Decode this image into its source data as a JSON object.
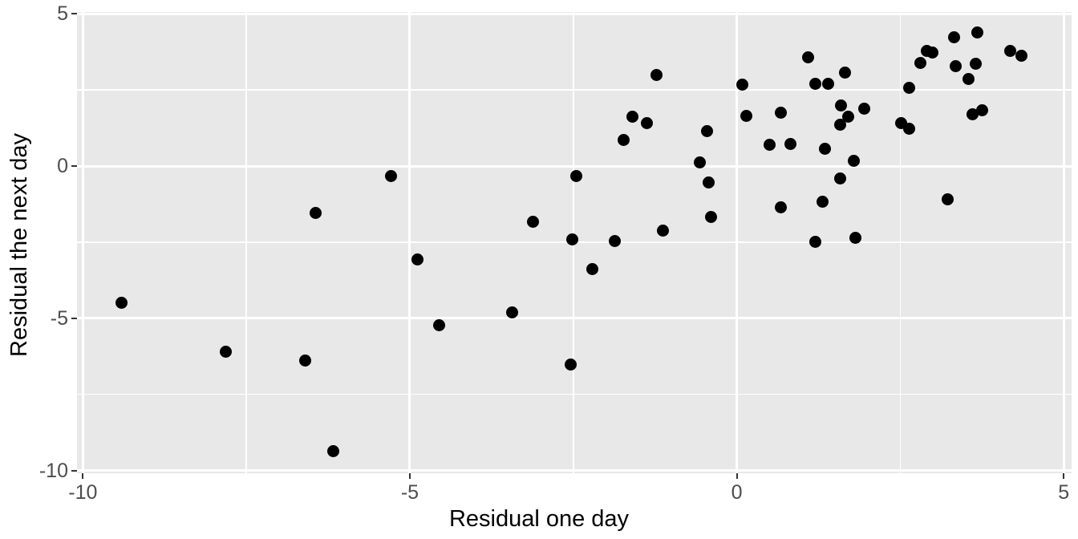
{
  "chart_data": {
    "type": "scatter",
    "title": "",
    "xlabel": "Residual one day",
    "ylabel": "Residual the next day",
    "xlim": [
      -10.09,
      5.12
    ],
    "ylim": [
      -10.09,
      5.06
    ],
    "x_major_ticks": [
      -10,
      -5,
      0,
      5
    ],
    "y_major_ticks": [
      5,
      0,
      -5,
      -10
    ],
    "x_minor_gridlines": [
      -7.5,
      -2.5,
      2.5
    ],
    "y_minor_gridlines": [
      2.5,
      -2.5,
      -7.5
    ],
    "grid": true,
    "legend": "none",
    "style": {
      "panel_bg": "#E8E8E8",
      "grid_color": "#FFFFFF",
      "point_color": "#000000",
      "tick_label_color": "#4D4D4D",
      "axis_title_color": "#000000",
      "tick_mark_color": "#333333"
    },
    "points": [
      [
        -9.41,
        -4.49
      ],
      [
        -7.81,
        -6.1
      ],
      [
        -6.6,
        -6.38
      ],
      [
        -6.44,
        -1.53
      ],
      [
        -6.17,
        -9.36
      ],
      [
        -5.29,
        -0.34
      ],
      [
        -4.88,
        -3.06
      ],
      [
        -4.55,
        -5.23
      ],
      [
        -3.43,
        -4.81
      ],
      [
        -3.12,
        -1.82
      ],
      [
        -2.54,
        -6.53
      ],
      [
        -2.51,
        -2.4
      ],
      [
        -2.45,
        -0.32
      ],
      [
        -2.21,
        -3.39
      ],
      [
        -1.86,
        -2.45
      ],
      [
        -1.73,
        0.87
      ],
      [
        -1.59,
        1.62
      ],
      [
        -1.37,
        1.41
      ],
      [
        -1.23,
        2.98
      ],
      [
        -1.13,
        -2.13
      ],
      [
        -0.57,
        0.12
      ],
      [
        -0.45,
        1.15
      ],
      [
        -0.43,
        -0.55
      ],
      [
        -0.39,
        -1.68
      ],
      [
        0.09,
        2.67
      ],
      [
        0.14,
        1.64
      ],
      [
        0.5,
        0.69
      ],
      [
        0.67,
        1.75
      ],
      [
        0.67,
        -1.35
      ],
      [
        0.82,
        0.73
      ],
      [
        1.09,
        3.58
      ],
      [
        1.2,
        2.7
      ],
      [
        1.4,
        2.7
      ],
      [
        1.2,
        -2.5
      ],
      [
        1.31,
        -1.16
      ],
      [
        1.35,
        0.56
      ],
      [
        1.58,
        1.36
      ],
      [
        1.58,
        -0.41
      ],
      [
        1.59,
        1.98
      ],
      [
        1.66,
        3.07
      ],
      [
        1.71,
        1.61
      ],
      [
        1.79,
        0.18
      ],
      [
        1.81,
        -2.37
      ],
      [
        1.95,
        1.88
      ],
      [
        2.51,
        1.41
      ],
      [
        2.64,
        1.22
      ],
      [
        2.64,
        2.56
      ],
      [
        2.81,
        3.38
      ],
      [
        2.91,
        3.77
      ],
      [
        2.99,
        3.73
      ],
      [
        3.22,
        -1.08
      ],
      [
        3.32,
        4.23
      ],
      [
        3.35,
        3.27
      ],
      [
        3.54,
        2.86
      ],
      [
        3.61,
        1.71
      ],
      [
        3.66,
        3.35
      ],
      [
        3.68,
        4.4
      ],
      [
        3.75,
        1.84
      ],
      [
        4.18,
        3.78
      ],
      [
        4.35,
        3.63
      ]
    ]
  }
}
